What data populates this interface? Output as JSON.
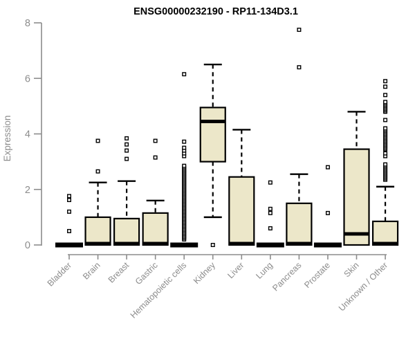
{
  "chart_data": {
    "type": "boxplot",
    "title": "ENSG00000232190 - RP11-134D3.1",
    "ylabel": "Expression",
    "xlabel": "",
    "ylim": [
      0,
      8
    ],
    "yticks": [
      0,
      2,
      4,
      6,
      8
    ],
    "grid": false,
    "legend": null,
    "colors": {
      "box_fill": "#ece7c9",
      "box_stroke": "#000000",
      "median": "#000000",
      "whisker": "#000000",
      "outlier_fill": "#ffffff",
      "outlier_stroke": "#000000",
      "axis": "#8c8c8c",
      "tick_label": "#8c8c8c",
      "title": "#000000",
      "background": "#ffffff"
    },
    "categories": [
      "Bladder",
      "Brain",
      "Breast",
      "Gastric",
      "Hematopoietic cells",
      "Kidney",
      "Liver",
      "Lung",
      "Pancreas",
      "Prostate",
      "Skin",
      "Unknown / Other"
    ],
    "series": [
      {
        "name": "Bladder",
        "q1": 0,
        "median": 0,
        "q3": 0,
        "whisker_low": 0,
        "whisker_high": 0,
        "outliers": [
          0.5,
          1.2,
          1.62,
          1.76
        ]
      },
      {
        "name": "Brain",
        "q1": 0,
        "median": 0.05,
        "q3": 1.0,
        "whisker_low": 0,
        "whisker_high": 2.25,
        "outliers": [
          2.65,
          3.75
        ]
      },
      {
        "name": "Breast",
        "q1": 0,
        "median": 0.05,
        "q3": 0.95,
        "whisker_low": 0,
        "whisker_high": 2.3,
        "outliers": [
          3.1,
          3.4,
          3.62,
          3.84
        ]
      },
      {
        "name": "Gastric",
        "q1": 0,
        "median": 0.05,
        "q3": 1.15,
        "whisker_low": 0,
        "whisker_high": 1.6,
        "outliers": [
          3.15,
          3.75
        ]
      },
      {
        "name": "Hematopoietic cells",
        "q1": 0,
        "median": 0,
        "q3": 0,
        "whisker_low": 0,
        "whisker_high": 0,
        "outliers": [
          0.2,
          0.25,
          0.3,
          0.35,
          0.4,
          0.45,
          0.5,
          0.55,
          0.6,
          0.65,
          0.7,
          0.75,
          0.8,
          0.85,
          0.9,
          0.95,
          1,
          1.05,
          1.1,
          1.15,
          1.2,
          1.25,
          1.3,
          1.35,
          1.4,
          1.45,
          1.5,
          1.55,
          1.6,
          1.65,
          1.7,
          1.75,
          1.8,
          1.85,
          1.9,
          1.95,
          2,
          2.05,
          2.1,
          2.15,
          2.2,
          2.25,
          2.3,
          2.35,
          2.4,
          2.45,
          2.5,
          2.55,
          2.6,
          2.65,
          2.7,
          2.75,
          2.8,
          2.85,
          3.2,
          3.3,
          3.4,
          3.5,
          3.72,
          6.15
        ]
      },
      {
        "name": "Kidney",
        "q1": 3.0,
        "median": 4.45,
        "q3": 4.95,
        "whisker_low": 1.0,
        "whisker_high": 6.5,
        "outliers": [
          0
        ]
      },
      {
        "name": "Liver",
        "q1": 0,
        "median": 0.05,
        "q3": 2.45,
        "whisker_low": 0,
        "whisker_high": 4.15,
        "outliers": []
      },
      {
        "name": "Lung",
        "q1": 0,
        "median": 0,
        "q3": 0,
        "whisker_low": 0,
        "whisker_high": 0,
        "outliers": [
          0.6,
          1.15,
          1.3,
          2.25
        ]
      },
      {
        "name": "Pancreas",
        "q1": 0,
        "median": 0.05,
        "q3": 1.5,
        "whisker_low": 0,
        "whisker_high": 2.55,
        "outliers": [
          6.4,
          7.75
        ]
      },
      {
        "name": "Prostate",
        "q1": 0,
        "median": 0,
        "q3": 0,
        "whisker_low": 0,
        "whisker_high": 0,
        "outliers": [
          1.15,
          2.8
        ]
      },
      {
        "name": "Skin",
        "q1": 0,
        "median": 0.4,
        "q3": 3.45,
        "whisker_low": 0,
        "whisker_high": 4.8,
        "outliers": []
      },
      {
        "name": "Unknown / Other",
        "q1": 0,
        "median": 0.05,
        "q3": 0.85,
        "whisker_low": 0,
        "whisker_high": 2.1,
        "outliers": [
          2.35,
          2.4,
          2.45,
          2.5,
          2.55,
          2.6,
          2.65,
          2.7,
          2.75,
          2.8,
          2.85,
          2.9,
          3.2,
          3.3,
          3.45,
          3.5,
          3.55,
          3.6,
          3.65,
          3.7,
          3.75,
          3.8,
          3.85,
          3.9,
          3.95,
          4,
          4.05,
          4.1,
          4.15,
          4.2,
          4.5,
          4.8,
          4.85,
          4.9,
          4.95,
          5,
          5.05,
          5.1,
          5.15,
          5.4,
          5.7,
          5.9
        ]
      }
    ]
  }
}
